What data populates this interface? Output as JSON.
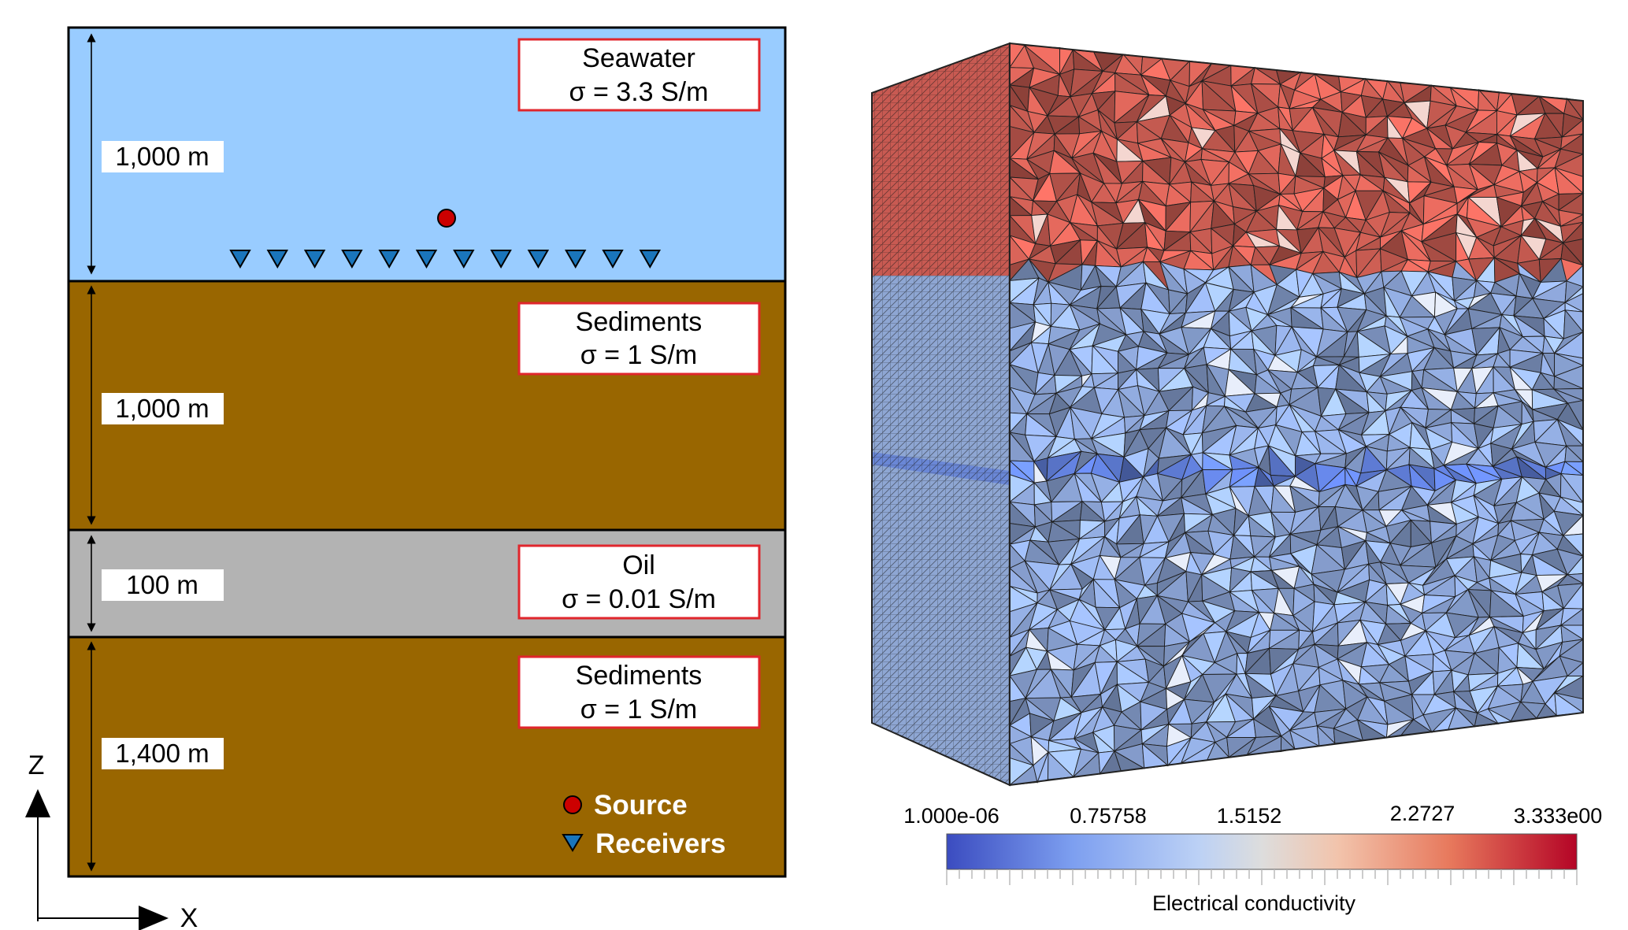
{
  "layers": [
    {
      "id": "seawater",
      "title": "Seawater",
      "sigma": "σ = 3.3 S/m",
      "thickness": "1,000 m",
      "color": "#99ccff"
    },
    {
      "id": "sediments-upper",
      "title": "Sediments",
      "sigma": "σ = 1 S/m",
      "thickness": "1,000 m",
      "color": "#996600"
    },
    {
      "id": "oil",
      "title": "Oil",
      "sigma": "σ = 0.01 S/m",
      "thickness": "100 m",
      "color": "#b3b3b3"
    },
    {
      "id": "sediments-lower",
      "title": "Sediments",
      "sigma": "σ = 1 S/m",
      "thickness": "1,400 m",
      "color": "#996600"
    }
  ],
  "axes": {
    "z": "Z",
    "x": "X"
  },
  "legend": {
    "source": "Source",
    "receivers": "Receivers"
  },
  "source_color": "#cc0000",
  "receiver_color": "#1a75bb",
  "receiver_count": 12,
  "colorbar": {
    "ticks": [
      "1.000e-06",
      "0.75758",
      "1.5152",
      "2.2727",
      "3.333e00"
    ],
    "title": "Electrical conductivity",
    "low_color": "#3b4cc0",
    "mid_color": "#dddddd",
    "high_color": "#b40426"
  }
}
